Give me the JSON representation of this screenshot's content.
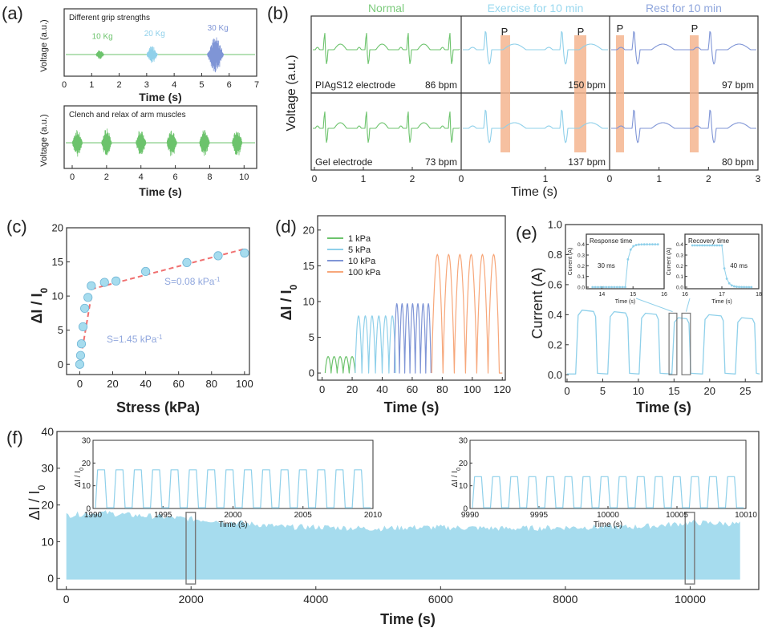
{
  "colors": {
    "axis": "#333333",
    "green": "#6cc36c",
    "cyan": "#8fd0ea",
    "blue": "#7f95d6",
    "orange": "#f7a77a",
    "highlight": "#f4b58f",
    "fit": "#f07070",
    "sky": "#a6dcee",
    "label_blue": "#8fa6dd",
    "label_cyan": "#99d8ef",
    "label_green": "#7ccb7c",
    "box": "#777777"
  },
  "panels": {
    "a": {
      "label": "(a)"
    },
    "b": {
      "label": "(b)"
    },
    "c": {
      "label": "(c)"
    },
    "d": {
      "label": "(d)"
    },
    "e": {
      "label": "(e)"
    },
    "f": {
      "label": "(f)"
    }
  },
  "chart_data": [
    {
      "id": "a1",
      "type": "line",
      "title": "Different grip strengths",
      "xlabel": "Time (s)",
      "ylabel": "Voltage (a.u.)",
      "xlim": [
        0,
        7
      ],
      "xticks": [
        0,
        1,
        2,
        3,
        4,
        5,
        6,
        7
      ],
      "bursts": [
        {
          "center": 1.3,
          "width": 0.3,
          "amplitude": 0.25,
          "label": "10 Kg",
          "color": "green"
        },
        {
          "center": 3.2,
          "width": 0.4,
          "amplitude": 0.5,
          "label": "20 Kg",
          "color": "cyan"
        },
        {
          "center": 5.5,
          "width": 0.6,
          "amplitude": 1.0,
          "label": "30 Kg",
          "color": "blue"
        }
      ]
    },
    {
      "id": "a2",
      "type": "line",
      "title": "Clench and relax of arm muscles",
      "xlabel": "Time (s)",
      "ylabel": "Voltage (a.u.)",
      "xlim": [
        0,
        10.5
      ],
      "xticks": [
        0,
        2,
        4,
        6,
        8,
        10
      ],
      "burst_times": [
        0.3,
        2.0,
        4.0,
        5.8,
        7.7,
        9.6
      ]
    },
    {
      "id": "b",
      "type": "line",
      "xlabel": "Time (s)",
      "ylabel": "Voltage (a.u.)",
      "xticks_left": [
        "0",
        "1",
        "2"
      ],
      "xticks_mid": [
        "0",
        "1"
      ],
      "xticks_right": [
        "0",
        "1",
        "2",
        "3"
      ],
      "columns": [
        {
          "title": "Normal",
          "color": "green"
        },
        {
          "title": "Exercise for 10 min",
          "color": "cyan"
        },
        {
          "title": "Rest for 10 min",
          "color": "blue"
        }
      ],
      "rows": [
        {
          "electrode": "PIAgS12 electrode",
          "bpm": [
            "86 bpm",
            "150 bpm",
            "97 bpm"
          ]
        },
        {
          "electrode": "Gel electrode",
          "bpm": [
            "73 bpm",
            "137 bpm",
            "80 bpm"
          ]
        }
      ],
      "peak_marker": "P"
    },
    {
      "id": "c",
      "type": "scatter",
      "xlabel": "Stress (kPa)",
      "ylabel": "ΔI / I",
      "ylabel_sub": "0",
      "xlim": [
        -8,
        103
      ],
      "ylim": [
        -1.5,
        20
      ],
      "xticks": [
        0,
        20,
        40,
        60,
        80,
        100
      ],
      "yticks": [
        0,
        5,
        10,
        15,
        20
      ],
      "x": [
        0,
        0.5,
        1,
        2,
        3,
        5,
        7,
        15,
        22,
        40,
        65,
        84,
        100
      ],
      "y": [
        0,
        1.3,
        3.0,
        5.5,
        8.2,
        9.8,
        11.5,
        12.0,
        12.2,
        13.6,
        14.9,
        15.9,
        16.3
      ],
      "fit1": {
        "x": [
          0,
          7
        ],
        "y": [
          0,
          10.0
        ],
        "label_main": "S=1.45 kPa",
        "label_exp": "-1"
      },
      "fit2": {
        "x": [
          7,
          100
        ],
        "y": [
          11.0,
          16.9
        ],
        "label_main": "S=0.08 kPa",
        "label_exp": "-1"
      }
    },
    {
      "id": "d",
      "type": "line",
      "xlabel": "Time (s)",
      "ylabel": "ΔI / I",
      "ylabel_sub": "0",
      "xlim": [
        -3,
        122
      ],
      "ylim": [
        -1,
        22
      ],
      "xticks": [
        0,
        20,
        40,
        60,
        80,
        100,
        120
      ],
      "yticks": [
        0,
        5,
        10,
        15,
        20
      ],
      "series": [
        {
          "name": "1 kPa",
          "color": "green",
          "start": 2,
          "period": 4,
          "count": 5,
          "amplitude": 2.3
        },
        {
          "name": "5 kPa",
          "color": "cyan",
          "start": 22,
          "period": 4.5,
          "count": 6,
          "amplitude": 8
        },
        {
          "name": "10 kPa",
          "color": "blue",
          "start": 48,
          "period": 3.5,
          "count": 7,
          "amplitude": 9.7
        },
        {
          "name": "100 kPa",
          "color": "orange",
          "start": 73,
          "period": 7.5,
          "count": 6,
          "amplitude": 16.6
        }
      ]
    },
    {
      "id": "e",
      "type": "line",
      "xlabel": "Time (s)",
      "ylabel": "Current (A)",
      "xlim": [
        0,
        27
      ],
      "ylim": [
        -0.02,
        1.0
      ],
      "xticks": [
        0,
        5,
        10,
        15,
        20,
        25
      ],
      "yticks": [
        0.0,
        0.2,
        0.4,
        0.6,
        0.8,
        1.0
      ],
      "cycles": [
        {
          "on": 1.2,
          "off": 4.0
        },
        {
          "on": 5.7,
          "off": 8.5
        },
        {
          "on": 10.1,
          "off": 12.8
        },
        {
          "on": 14.7,
          "off": 17.1
        },
        {
          "on": 19.0,
          "off": 21.9
        },
        {
          "on": 23.6,
          "off": 26.3
        }
      ],
      "plateau": [
        0.43,
        0.42,
        0.41,
        0.38,
        0.4,
        0.38
      ],
      "insets": [
        {
          "title": "Response time",
          "annotation": "30 ms",
          "xlim": [
            13.5,
            16
          ],
          "xticks": [
            "14",
            "15",
            "16"
          ],
          "ylabel": "Current (A)",
          "yticks": [
            "0.0",
            "0.1",
            "0.2",
            "0.3",
            "0.4"
          ],
          "xlabel": "Time (s)",
          "mode": "rise",
          "edge": 14.75
        },
        {
          "title": "Recovery time",
          "annotation": "40 ms",
          "xlim": [
            16,
            18
          ],
          "xticks": [
            "16",
            "17",
            "18"
          ],
          "ylabel": "Current (A)",
          "yticks": [
            "0.0",
            "0.1",
            "0.2",
            "0.3",
            "0.4"
          ],
          "xlabel": "Time (s)",
          "mode": "fall",
          "edge": 17.0
        }
      ]
    },
    {
      "id": "f",
      "type": "area",
      "xlabel": "Time (s)",
      "ylabel": "ΔI / I",
      "ylabel_sub": "0",
      "xlim": [
        -150,
        11100
      ],
      "ylim": [
        -3,
        40
      ],
      "xticks": [
        0,
        2000,
        4000,
        6000,
        8000,
        10000
      ],
      "yticks": [
        0,
        10,
        20,
        30,
        40
      ],
      "envelope_x": [
        0,
        500,
        1000,
        1500,
        2000,
        2500,
        3000,
        3500,
        4000,
        4500,
        5000,
        5500,
        6000,
        6500,
        7000,
        7500,
        8000,
        8500,
        9000,
        9500,
        10000,
        10500,
        10800
      ],
      "envelope_y": [
        17.2,
        18.0,
        17.3,
        16.8,
        16.2,
        15.6,
        14.8,
        14.0,
        14.0,
        13.8,
        13.6,
        13.9,
        13.9,
        13.8,
        13.6,
        13.7,
        13.9,
        14.0,
        14.0,
        14.4,
        15.2,
        15.0,
        14.8
      ],
      "insets": [
        {
          "xlim": [
            1990,
            2010
          ],
          "xticks": [
            "1990",
            "1995",
            "2000",
            "2005",
            "2010"
          ],
          "yticks": [
            "0",
            "10",
            "20",
            "30"
          ],
          "xlabel": "Time (s)",
          "ylabel": "ΔI / I",
          "ylabel_sub": "0",
          "cycles": 15,
          "amplitude": 17
        },
        {
          "xlim": [
            9990,
            10010
          ],
          "xticks": [
            "9990",
            "9995",
            "10000",
            "10005",
            "10010"
          ],
          "yticks": [
            "0",
            "10",
            "20",
            "30"
          ],
          "xlabel": "Time (s)",
          "ylabel": "ΔI / I",
          "ylabel_sub": "0",
          "cycles": 15,
          "amplitude": 14
        }
      ],
      "highlight_boxes": [
        1990,
        9990
      ]
    }
  ]
}
